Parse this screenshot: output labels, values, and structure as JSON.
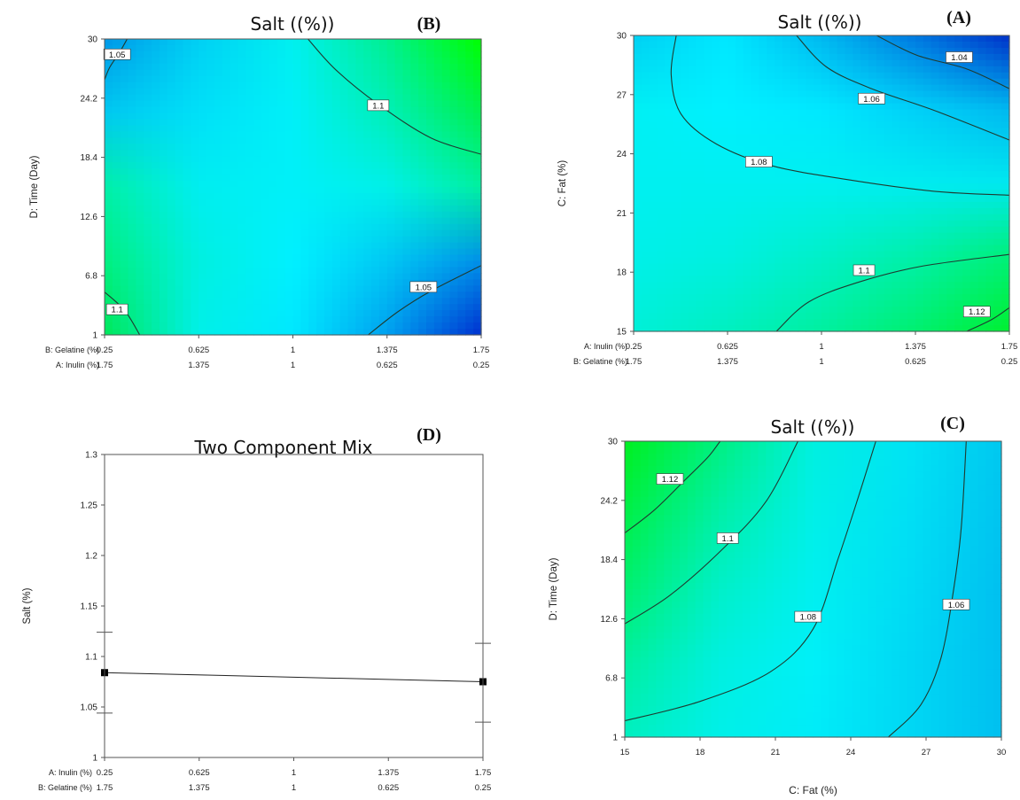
{
  "colors": {
    "green": "#00ff00",
    "cyan": "#00ffff",
    "blue": "#0022cc",
    "contour": "#1f3b30",
    "frame": "#000000"
  },
  "chart_data": [
    {
      "type": "heatmap",
      "panel_label": "(B)",
      "title": "Salt ((%))",
      "ylabel": "D: Time (Day)",
      "xlabel": "",
      "x_rows": [
        {
          "label": "B: Gelatine (%)",
          "ticks": [
            "0.25",
            "0.625",
            "1",
            "1.375",
            "1.75"
          ]
        },
        {
          "label": "A: Inulin (%)",
          "ticks": [
            "1.75",
            "1.375",
            "1",
            "0.625",
            "0.25"
          ]
        }
      ],
      "xlim": [
        0.25,
        1.75
      ],
      "ylim": [
        1,
        30
      ],
      "y_ticks": [
        "1",
        "6.8",
        "12.6",
        "18.4",
        "24.2",
        "30"
      ],
      "colors": [
        [
          "#00e85a",
          "#00f0e8",
          "#00e8ff",
          "#00a0f0",
          "#0030d0"
        ],
        [
          "#00f080",
          "#00f0e0",
          "#00f0ff",
          "#00c8f4",
          "#0090e8"
        ],
        [
          "#00f0a8",
          "#00eef0",
          "#00f0f8",
          "#00f0e8",
          "#00f0a0"
        ],
        [
          "#00c8f0",
          "#00e0f8",
          "#00f0f8",
          "#00f0b8",
          "#00f050"
        ],
        [
          "#0098e8",
          "#00d0f4",
          "#00f0f0",
          "#00f090",
          "#00ff00"
        ]
      ],
      "contours": [
        {
          "level": "1.05",
          "points": [
            [
              0.25,
              26
            ],
            [
              0.27,
              27.2
            ],
            [
              0.31,
              28.7
            ],
            [
              0.34,
              30
            ]
          ],
          "label_at": [
            0.3,
            28.5
          ]
        },
        {
          "level": "1.1",
          "points": [
            [
              1.06,
              30
            ],
            [
              1.17,
              27
            ],
            [
              1.34,
              23.6
            ],
            [
              1.55,
              20.3
            ],
            [
              1.75,
              18.7
            ]
          ],
          "label_at": [
            1.34,
            23.5
          ]
        },
        {
          "level": "1.1",
          "points": [
            [
              0.25,
              5.2
            ],
            [
              0.33,
              3.4
            ],
            [
              0.39,
              1
            ]
          ],
          "label_at": [
            0.3,
            3.5
          ]
        },
        {
          "level": "1.05",
          "points": [
            [
              1.3,
              1
            ],
            [
              1.42,
              3.3
            ],
            [
              1.55,
              5.3
            ],
            [
              1.75,
              7.8
            ]
          ],
          "label_at": [
            1.52,
            5.7
          ]
        }
      ]
    },
    {
      "type": "heatmap",
      "panel_label": "(A)",
      "title": "Salt ((%))",
      "ylabel": "C: Fat (%)",
      "xlabel": "",
      "x_rows": [
        {
          "label": "A: Inulin (%)",
          "ticks": [
            "0.25",
            "0.625",
            "1",
            "1.375",
            "1.75"
          ]
        },
        {
          "label": "B: Gelatine (%)",
          "ticks": [
            "1.75",
            "1.375",
            "1",
            "0.625",
            "0.25"
          ]
        }
      ],
      "xlim": [
        0.25,
        1.75
      ],
      "ylim": [
        15,
        30
      ],
      "y_ticks": [
        "15",
        "18",
        "21",
        "24",
        "27",
        "30"
      ],
      "colors": [
        [
          "#00f0d8",
          "#00f0c0",
          "#00f0a0",
          "#00f070",
          "#00f030"
        ],
        [
          "#00f0e8",
          "#00f0e0",
          "#00f0c8",
          "#00f0a8",
          "#00f078"
        ],
        [
          "#00f0f0",
          "#00f0f0",
          "#00f0f0",
          "#00ecf0",
          "#00e8f0"
        ],
        [
          "#00f0f4",
          "#00f0ff",
          "#00e8ff",
          "#00d0f8",
          "#00b8f0"
        ],
        [
          "#00d0f4",
          "#00e8ff",
          "#00b8f0",
          "#0078e0",
          "#0030c8"
        ]
      ],
      "contours": [
        {
          "level": "1.04",
          "points": [
            [
              1.22,
              30
            ],
            [
              1.38,
              29
            ],
            [
              1.58,
              28.3
            ],
            [
              1.75,
              27.3
            ]
          ],
          "label_at": [
            1.55,
            28.9
          ]
        },
        {
          "level": "1.06",
          "points": [
            [
              0.9,
              30
            ],
            [
              1.02,
              28.4
            ],
            [
              1.2,
              27.3
            ],
            [
              1.45,
              26.2
            ],
            [
              1.75,
              24.7
            ]
          ],
          "label_at": [
            1.2,
            26.8
          ]
        },
        {
          "level": "1.08",
          "points": [
            [
              0.42,
              30
            ],
            [
              0.4,
              28
            ],
            [
              0.44,
              26
            ],
            [
              0.58,
              24.5
            ],
            [
              0.8,
              23.4
            ],
            [
              1.1,
              22.7
            ],
            [
              1.45,
              22.1
            ],
            [
              1.75,
              21.9
            ]
          ],
          "label_at": [
            0.75,
            23.6
          ]
        },
        {
          "level": "1.1",
          "points": [
            [
              0.82,
              15
            ],
            [
              0.95,
              16.5
            ],
            [
              1.15,
              17.5
            ],
            [
              1.4,
              18.3
            ],
            [
              1.75,
              18.9
            ]
          ],
          "label_at": [
            1.17,
            18.1
          ]
        },
        {
          "level": "1.12",
          "points": [
            [
              1.58,
              15
            ],
            [
              1.68,
              15.6
            ],
            [
              1.75,
              16.2
            ]
          ],
          "label_at": [
            1.62,
            16
          ]
        }
      ]
    },
    {
      "type": "line",
      "panel_label": "(D)",
      "title": "Two Component Mix",
      "ylabel": "Salt (%)",
      "xlabel": "",
      "x_rows": [
        {
          "label": "A: Inulin (%)",
          "ticks": [
            "0.25",
            "0.625",
            "1",
            "1.375",
            "1.75"
          ]
        },
        {
          "label": "B: Gelatine (%)",
          "ticks": [
            "1.75",
            "1.375",
            "1",
            "0.625",
            "0.25"
          ]
        }
      ],
      "xlim": [
        0.25,
        1.75
      ],
      "ylim": [
        1,
        1.3
      ],
      "y_ticks": [
        "1",
        "1.05",
        "1.1",
        "1.15",
        "1.2",
        "1.25",
        "1.3"
      ],
      "x": [
        0.25,
        1.75
      ],
      "y": [
        1.084,
        1.075
      ],
      "err_low": [
        1.044,
        1.035
      ],
      "err_high": [
        1.124,
        1.113
      ]
    },
    {
      "type": "heatmap",
      "panel_label": "(C)",
      "title": "Salt ((%))",
      "ylabel": "D: Time (Day)",
      "xlabel": "C: Fat (%)",
      "x_rows": [
        {
          "label": "",
          "ticks": [
            "15",
            "18",
            "21",
            "24",
            "27",
            "30"
          ]
        }
      ],
      "xlim": [
        15,
        30
      ],
      "ylim": [
        1,
        30
      ],
      "y_ticks": [
        "1",
        "6.8",
        "12.6",
        "18.4",
        "24.2",
        "30"
      ],
      "colors": [
        [
          "#00f0c0",
          "#00f0e8",
          "#00ecf8",
          "#00d8f4",
          "#00c0f0"
        ],
        [
          "#00f0a0",
          "#00f0e0",
          "#00f0f8",
          "#00d8f4",
          "#00c0f0"
        ],
        [
          "#00f070",
          "#00f0c8",
          "#00f0f0",
          "#00dcf4",
          "#00c0f0"
        ],
        [
          "#00f048",
          "#00f0a8",
          "#00f0e8",
          "#00e0f4",
          "#00c4f0"
        ],
        [
          "#00f020",
          "#00f080",
          "#00f0e0",
          "#00e4f4",
          "#00c8f0"
        ]
      ],
      "contours": [
        {
          "level": "1.12",
          "points": [
            [
              15,
              21
            ],
            [
              16.2,
              23.3
            ],
            [
              17.4,
              26.2
            ],
            [
              18.3,
              28.4
            ],
            [
              18.8,
              30
            ]
          ],
          "label_at": [
            16.8,
            26.3
          ]
        },
        {
          "level": "1.1",
          "points": [
            [
              15,
              12.1
            ],
            [
              16.8,
              14.9
            ],
            [
              18.8,
              19.2
            ],
            [
              20.6,
              24
            ],
            [
              21.9,
              30
            ]
          ],
          "label_at": [
            19.1,
            20.5
          ]
        },
        {
          "level": "1.08",
          "points": [
            [
              15,
              2.6
            ],
            [
              18,
              4.5
            ],
            [
              20.8,
              7.4
            ],
            [
              22.5,
              11.6
            ],
            [
              23.5,
              18.5
            ],
            [
              24.3,
              24.5
            ],
            [
              25,
              30
            ]
          ],
          "label_at": [
            22.3,
            12.8
          ]
        },
        {
          "level": "1.06",
          "points": [
            [
              25.5,
              1
            ],
            [
              26.8,
              4.2
            ],
            [
              27.6,
              8.8
            ],
            [
              28.1,
              15.5
            ],
            [
              28.4,
              21.5
            ],
            [
              28.6,
              30
            ]
          ],
          "label_at": [
            28.2,
            14
          ]
        }
      ]
    }
  ]
}
